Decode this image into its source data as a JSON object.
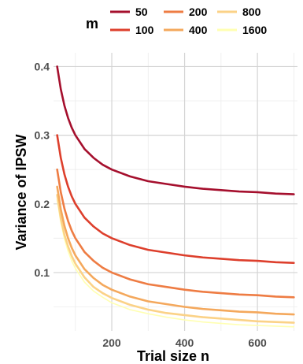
{
  "chart_data": {
    "type": "line",
    "xlabel": "Trial size n",
    "ylabel": "Variance of IPSW",
    "xlim": [
      40,
      710
    ],
    "ylim": [
      0.015,
      0.42
    ],
    "x_ticks": [
      200,
      400,
      600
    ],
    "y_ticks": [
      0.1,
      0.2,
      0.3,
      0.4
    ],
    "x_tick_labels": [
      "200",
      "400",
      "600"
    ],
    "y_tick_labels": [
      "0.1",
      "0.2",
      "0.3",
      "0.4"
    ],
    "grid": true,
    "legend": {
      "title": "m",
      "position": "top",
      "entries": [
        {
          "label": "50",
          "color": "#a50f2d"
        },
        {
          "label": "100",
          "color": "#dd3f2c"
        },
        {
          "label": "200",
          "color": "#ee7c43"
        },
        {
          "label": "400",
          "color": "#f4a85c"
        },
        {
          "label": "800",
          "color": "#fbd287"
        },
        {
          "label": "1600",
          "color": "#ffffb2"
        }
      ]
    },
    "x": [
      50,
      60,
      70,
      80,
      90,
      100,
      125,
      150,
      175,
      200,
      250,
      300,
      350,
      400,
      450,
      500,
      550,
      600,
      650,
      700
    ],
    "series": [
      {
        "name": "50",
        "color": "#a50f2d",
        "values": [
          0.4,
          0.367,
          0.343,
          0.325,
          0.311,
          0.3,
          0.28,
          0.267,
          0.257,
          0.25,
          0.24,
          0.233,
          0.229,
          0.225,
          0.222,
          0.22,
          0.218,
          0.217,
          0.215,
          0.214
        ]
      },
      {
        "name": "100",
        "color": "#dd3f2c",
        "values": [
          0.3,
          0.267,
          0.243,
          0.225,
          0.211,
          0.2,
          0.18,
          0.167,
          0.157,
          0.15,
          0.14,
          0.133,
          0.129,
          0.125,
          0.122,
          0.12,
          0.118,
          0.117,
          0.115,
          0.114
        ]
      },
      {
        "name": "200",
        "color": "#ee7c43",
        "values": [
          0.25,
          0.217,
          0.193,
          0.175,
          0.161,
          0.15,
          0.13,
          0.117,
          0.107,
          0.1,
          0.09,
          0.083,
          0.079,
          0.075,
          0.072,
          0.07,
          0.068,
          0.067,
          0.065,
          0.064
        ]
      },
      {
        "name": "400",
        "color": "#f4a85c",
        "values": [
          0.225,
          0.192,
          0.168,
          0.15,
          0.136,
          0.125,
          0.105,
          0.092,
          0.082,
          0.075,
          0.065,
          0.058,
          0.054,
          0.05,
          0.047,
          0.045,
          0.043,
          0.042,
          0.04,
          0.039
        ]
      },
      {
        "name": "800",
        "color": "#fbd287",
        "values": [
          0.213,
          0.179,
          0.155,
          0.138,
          0.124,
          0.113,
          0.093,
          0.079,
          0.07,
          0.063,
          0.053,
          0.046,
          0.041,
          0.038,
          0.035,
          0.033,
          0.031,
          0.029,
          0.028,
          0.027
        ]
      },
      {
        "name": "1600",
        "color": "#ffffb2",
        "values": [
          0.206,
          0.173,
          0.149,
          0.131,
          0.117,
          0.106,
          0.086,
          0.073,
          0.064,
          0.056,
          0.046,
          0.04,
          0.035,
          0.031,
          0.028,
          0.026,
          0.024,
          0.023,
          0.022,
          0.021
        ]
      }
    ]
  }
}
